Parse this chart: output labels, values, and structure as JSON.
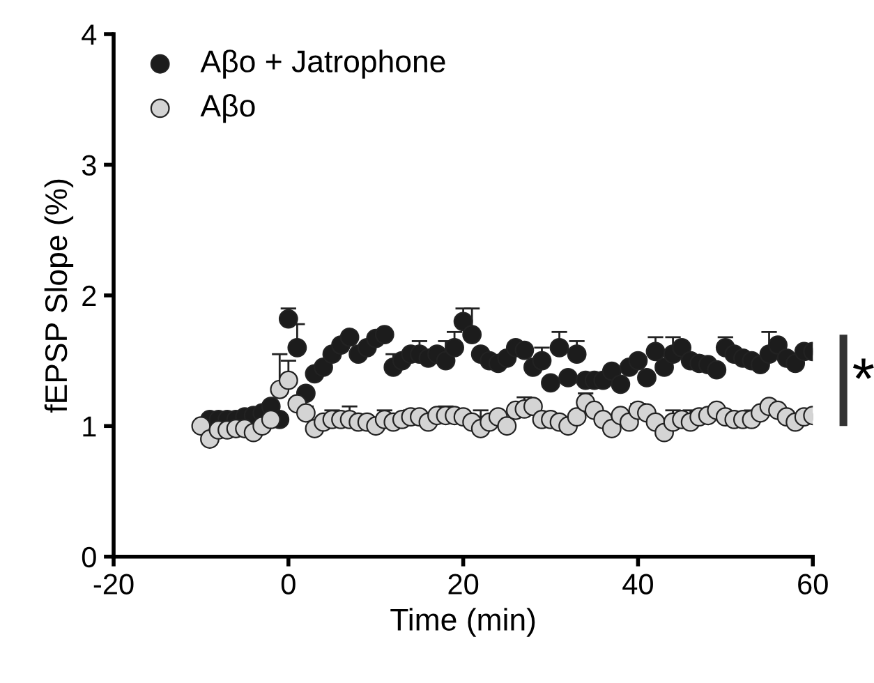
{
  "chart_data": {
    "type": "scatter",
    "xlabel": "Time (min)",
    "ylabel": "fEPSP Slope (%)",
    "xlim": [
      -20,
      60
    ],
    "xticks": [
      -20,
      0,
      20,
      40,
      60
    ],
    "ylim": [
      0,
      4
    ],
    "yticks": [
      0,
      1,
      2,
      3,
      4
    ],
    "grid": false,
    "legend": "top left",
    "marker": "circle",
    "annotations": [
      "*"
    ],
    "series": [
      {
        "name": "Aβo + Jatrophone",
        "color": "#1c1c1c",
        "x": [
          -9,
          -8,
          -7,
          -6,
          -5,
          -4,
          -3,
          -2,
          -1,
          0,
          1,
          2,
          3,
          4,
          5,
          6,
          7,
          8,
          9,
          10,
          11,
          12,
          13,
          14,
          15,
          16,
          17,
          18,
          19,
          20,
          21,
          22,
          23,
          24,
          25,
          26,
          27,
          28,
          29,
          30,
          31,
          32,
          33,
          34,
          35,
          36,
          37,
          38,
          39,
          40,
          41,
          42,
          43,
          44,
          45,
          46,
          47,
          48,
          49,
          50,
          51,
          52,
          53,
          54,
          55,
          56,
          57,
          58,
          59,
          60
        ],
        "values": [
          1.05,
          1.05,
          1.05,
          1.05,
          1.07,
          1.08,
          1.1,
          1.15,
          1.05,
          1.82,
          1.6,
          1.25,
          1.4,
          1.45,
          1.55,
          1.62,
          1.68,
          1.55,
          1.6,
          1.67,
          1.7,
          1.45,
          1.5,
          1.55,
          1.55,
          1.52,
          1.55,
          1.5,
          1.6,
          1.8,
          1.7,
          1.55,
          1.5,
          1.48,
          1.52,
          1.6,
          1.58,
          1.45,
          1.5,
          1.33,
          1.6,
          1.37,
          1.55,
          1.35,
          1.35,
          1.35,
          1.42,
          1.32,
          1.45,
          1.5,
          1.37,
          1.57,
          1.45,
          1.55,
          1.6,
          1.5,
          1.48,
          1.47,
          1.43,
          1.6,
          1.55,
          1.52,
          1.5,
          1.47,
          1.55,
          1.62,
          1.52,
          1.48,
          1.57,
          1.57
        ],
        "errors": [
          null,
          null,
          null,
          null,
          null,
          null,
          null,
          null,
          null,
          [
            1.82,
            1.9
          ],
          [
            1.6,
            1.78
          ],
          null,
          null,
          null,
          null,
          null,
          null,
          null,
          null,
          null,
          null,
          [
            1.45,
            1.55
          ],
          null,
          null,
          [
            1.55,
            1.65
          ],
          null,
          null,
          [
            1.5,
            1.65
          ],
          [
            1.6,
            1.72
          ],
          [
            1.8,
            1.9
          ],
          [
            1.7,
            1.9
          ],
          null,
          null,
          null,
          null,
          null,
          null,
          null,
          [
            1.5,
            1.6
          ],
          null,
          [
            1.6,
            1.72
          ],
          null,
          [
            1.55,
            1.65
          ],
          null,
          null,
          null,
          null,
          null,
          null,
          null,
          null,
          [
            1.57,
            1.68
          ],
          null,
          [
            1.55,
            1.68
          ],
          null,
          null,
          null,
          null,
          null,
          [
            1.6,
            1.68
          ],
          null,
          null,
          null,
          null,
          [
            1.55,
            1.72
          ],
          null,
          null,
          null,
          null,
          null
        ]
      },
      {
        "name": "Aβo",
        "color": "#d4d4d4",
        "x": [
          -10,
          -9,
          -8,
          -7,
          -6,
          -5,
          -4,
          -3,
          -2,
          -1,
          0,
          1,
          2,
          3,
          4,
          5,
          6,
          7,
          8,
          9,
          10,
          11,
          12,
          13,
          14,
          15,
          16,
          17,
          18,
          19,
          20,
          21,
          22,
          23,
          24,
          25,
          26,
          27,
          28,
          29,
          30,
          31,
          32,
          33,
          34,
          35,
          36,
          37,
          38,
          39,
          40,
          41,
          42,
          43,
          44,
          45,
          46,
          47,
          48,
          49,
          50,
          51,
          52,
          53,
          54,
          55,
          56,
          57,
          58,
          59,
          60
        ],
        "values": [
          1.0,
          0.9,
          0.97,
          0.97,
          0.98,
          0.98,
          0.95,
          1.0,
          1.05,
          1.28,
          1.35,
          1.17,
          1.1,
          0.98,
          1.03,
          1.05,
          1.05,
          1.05,
          1.03,
          1.03,
          1.0,
          1.05,
          1.03,
          1.05,
          1.07,
          1.07,
          1.03,
          1.08,
          1.08,
          1.08,
          1.07,
          1.03,
          0.98,
          1.03,
          1.07,
          1.0,
          1.12,
          1.13,
          1.15,
          1.05,
          1.05,
          1.03,
          1.0,
          1.07,
          1.18,
          1.12,
          1.05,
          0.98,
          1.08,
          1.03,
          1.12,
          1.1,
          1.03,
          0.95,
          1.03,
          1.05,
          1.03,
          1.07,
          1.08,
          1.12,
          1.07,
          1.05,
          1.05,
          1.05,
          1.1,
          1.15,
          1.12,
          1.07,
          1.03,
          1.07,
          1.08
        ],
        "errors": [
          null,
          null,
          null,
          null,
          null,
          null,
          null,
          null,
          null,
          [
            1.28,
            1.55
          ],
          [
            1.35,
            1.5
          ],
          null,
          [
            1.1,
            1.15
          ],
          null,
          null,
          [
            1.05,
            1.12
          ],
          null,
          [
            1.05,
            1.15
          ],
          null,
          null,
          null,
          [
            1.05,
            1.12
          ],
          null,
          null,
          [
            1.07,
            1.12
          ],
          null,
          null,
          null,
          [
            1.08,
            1.15
          ],
          null,
          null,
          null,
          [
            0.98,
            1.12
          ],
          null,
          null,
          null,
          null,
          [
            1.13,
            1.22
          ],
          null,
          null,
          null,
          null,
          null,
          null,
          [
            1.18,
            1.25
          ],
          null,
          null,
          null,
          null,
          null,
          [
            1.12,
            1.17
          ],
          null,
          null,
          null,
          [
            1.03,
            1.12
          ],
          null,
          [
            1.03,
            1.12
          ],
          null,
          null,
          null,
          null,
          null,
          null,
          [
            1.05,
            1.12
          ],
          null,
          null,
          null,
          null,
          null,
          null,
          null
        ]
      }
    ]
  }
}
